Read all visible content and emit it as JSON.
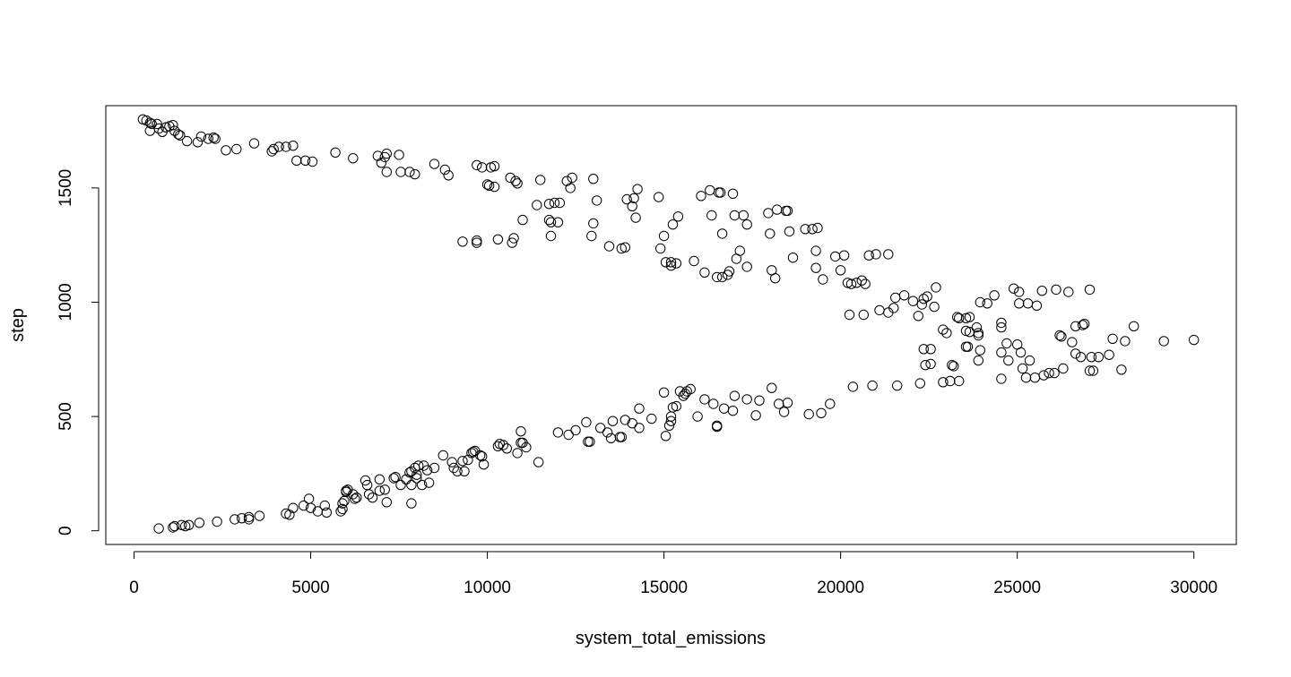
{
  "chart_data": {
    "type": "scatter",
    "xlabel": "system_total_emissions",
    "ylabel": "step",
    "xlim": [
      -800,
      31200
    ],
    "ylim": [
      -60,
      1860
    ],
    "grid": false,
    "legend": "none",
    "marker": "open-circle",
    "colors": {
      "points": "#000000",
      "axes": "#000000",
      "background": "#ffffff"
    },
    "x_ticks": [
      0,
      5000,
      10000,
      15000,
      20000,
      25000,
      30000
    ],
    "x_tick_labels": [
      "0",
      "5000",
      "10000",
      "15000",
      "20000",
      "25000",
      "30000"
    ],
    "y_ticks": [
      0,
      500,
      1000,
      1500
    ],
    "y_tick_labels": [
      "0",
      "500",
      "1000",
      "1500"
    ],
    "points": [
      [
        250,
        1800
      ],
      [
        350,
        1795
      ],
      [
        450,
        1785
      ],
      [
        500,
        1780
      ],
      [
        450,
        1750
      ],
      [
        650,
        1780
      ],
      [
        700,
        1760
      ],
      [
        800,
        1745
      ],
      [
        900,
        1765
      ],
      [
        1000,
        1770
      ],
      [
        1100,
        1775
      ],
      [
        1150,
        1750
      ],
      [
        1250,
        1735
      ],
      [
        1300,
        1730
      ],
      [
        1500,
        1705
      ],
      [
        1800,
        1700
      ],
      [
        1900,
        1725
      ],
      [
        2100,
        1715
      ],
      [
        2250,
        1720
      ],
      [
        2300,
        1715
      ],
      [
        2600,
        1665
      ],
      [
        2900,
        1670
      ],
      [
        3400,
        1695
      ],
      [
        3900,
        1660
      ],
      [
        3950,
        1670
      ],
      [
        4100,
        1680
      ],
      [
        4300,
        1680
      ],
      [
        4500,
        1685
      ],
      [
        4600,
        1620
      ],
      [
        4850,
        1620
      ],
      [
        5050,
        1615
      ],
      [
        5700,
        1655
      ],
      [
        6200,
        1630
      ],
      [
        6900,
        1640
      ],
      [
        7000,
        1610
      ],
      [
        7100,
        1635
      ],
      [
        7150,
        1650
      ],
      [
        7150,
        1570
      ],
      [
        7500,
        1645
      ],
      [
        7550,
        1570
      ],
      [
        7800,
        1570
      ],
      [
        7950,
        1560
      ],
      [
        8500,
        1605
      ],
      [
        8800,
        1580
      ],
      [
        8900,
        1555
      ],
      [
        9300,
        1265
      ],
      [
        9700,
        1260
      ],
      [
        9700,
        1270
      ],
      [
        9700,
        1600
      ],
      [
        9850,
        1590
      ],
      [
        10000,
        1515
      ],
      [
        10050,
        1510
      ],
      [
        10100,
        1590
      ],
      [
        10200,
        1595
      ],
      [
        10200,
        1505
      ],
      [
        10300,
        1275
      ],
      [
        10650,
        1545
      ],
      [
        10700,
        1260
      ],
      [
        10750,
        1280
      ],
      [
        10800,
        1530
      ],
      [
        10850,
        1520
      ],
      [
        11000,
        1360
      ],
      [
        11400,
        1425
      ],
      [
        11500,
        1535
      ],
      [
        11750,
        1360
      ],
      [
        11750,
        1430
      ],
      [
        11800,
        1350
      ],
      [
        11800,
        1290
      ],
      [
        11900,
        1435
      ],
      [
        12000,
        1350
      ],
      [
        12050,
        1435
      ],
      [
        12250,
        1530
      ],
      [
        12350,
        1500
      ],
      [
        12400,
        1545
      ],
      [
        12950,
        1290
      ],
      [
        13000,
        1345
      ],
      [
        13000,
        1540
      ],
      [
        13100,
        1445
      ],
      [
        13450,
        1245
      ],
      [
        13800,
        1235
      ],
      [
        13900,
        1240
      ],
      [
        13950,
        1450
      ],
      [
        14100,
        1420
      ],
      [
        14150,
        1455
      ],
      [
        14200,
        1370
      ],
      [
        14250,
        1495
      ],
      [
        14850,
        1460
      ],
      [
        14900,
        1235
      ],
      [
        15000,
        1290
      ],
      [
        15050,
        1175
      ],
      [
        15200,
        1160
      ],
      [
        15200,
        1175
      ],
      [
        15250,
        1340
      ],
      [
        15350,
        1170
      ],
      [
        15400,
        1375
      ],
      [
        15850,
        1180
      ],
      [
        16050,
        1465
      ],
      [
        16150,
        1130
      ],
      [
        16300,
        1490
      ],
      [
        16350,
        1380
      ],
      [
        16500,
        1110
      ],
      [
        16550,
        1480
      ],
      [
        16600,
        1480
      ],
      [
        16650,
        1300
      ],
      [
        16650,
        1110
      ],
      [
        16800,
        1120
      ],
      [
        16850,
        1135
      ],
      [
        16950,
        1475
      ],
      [
        17000,
        1380
      ],
      [
        17050,
        1190
      ],
      [
        17150,
        1225
      ],
      [
        17250,
        1380
      ],
      [
        17350,
        1340
      ],
      [
        17350,
        1155
      ],
      [
        17950,
        1390
      ],
      [
        18000,
        1300
      ],
      [
        18050,
        1140
      ],
      [
        18150,
        1105
      ],
      [
        18200,
        1405
      ],
      [
        18450,
        1400
      ],
      [
        18500,
        1400
      ],
      [
        18550,
        1310
      ],
      [
        18650,
        1195
      ],
      [
        19000,
        1320
      ],
      [
        19200,
        1320
      ],
      [
        19300,
        1225
      ],
      [
        19300,
        1150
      ],
      [
        19350,
        1325
      ],
      [
        19500,
        1100
      ],
      [
        19850,
        1200
      ],
      [
        20000,
        1140
      ],
      [
        20100,
        1205
      ],
      [
        20200,
        1085
      ],
      [
        20250,
        945
      ],
      [
        20300,
        1080
      ],
      [
        20450,
        1085
      ],
      [
        20600,
        1095
      ],
      [
        20650,
        945
      ],
      [
        20700,
        1080
      ],
      [
        20800,
        1205
      ],
      [
        21000,
        1210
      ],
      [
        21100,
        965
      ],
      [
        21350,
        1210
      ],
      [
        21350,
        955
      ],
      [
        21500,
        975
      ],
      [
        21550,
        1020
      ],
      [
        21800,
        1030
      ],
      [
        22050,
        1005
      ],
      [
        22200,
        940
      ],
      [
        22300,
        990
      ],
      [
        22350,
        1015
      ],
      [
        22450,
        1025
      ],
      [
        22650,
        980
      ],
      [
        22700,
        1065
      ],
      [
        23300,
        935
      ],
      [
        23550,
        930
      ],
      [
        23550,
        875
      ],
      [
        23650,
        935
      ],
      [
        23850,
        890
      ],
      [
        23900,
        865
      ],
      [
        23950,
        1000
      ],
      [
        24150,
        995
      ],
      [
        24350,
        1030
      ],
      [
        24550,
        890
      ],
      [
        24550,
        910
      ],
      [
        24900,
        1060
      ],
      [
        25050,
        1045
      ],
      [
        25050,
        995
      ],
      [
        25300,
        995
      ],
      [
        25550,
        985
      ],
      [
        25700,
        1050
      ],
      [
        26100,
        1055
      ],
      [
        26450,
        1045
      ],
      [
        26650,
        895
      ],
      [
        26850,
        900
      ],
      [
        26900,
        905
      ],
      [
        27050,
        1055
      ],
      [
        700,
        10
      ],
      [
        1100,
        15
      ],
      [
        1150,
        20
      ],
      [
        1350,
        25
      ],
      [
        1450,
        20
      ],
      [
        1550,
        25
      ],
      [
        1850,
        35
      ],
      [
        2350,
        40
      ],
      [
        2850,
        50
      ],
      [
        3050,
        55
      ],
      [
        3250,
        60
      ],
      [
        3250,
        50
      ],
      [
        3550,
        65
      ],
      [
        4300,
        75
      ],
      [
        4400,
        70
      ],
      [
        4500,
        100
      ],
      [
        4800,
        110
      ],
      [
        4950,
        140
      ],
      [
        5000,
        100
      ],
      [
        5200,
        85
      ],
      [
        5400,
        110
      ],
      [
        5450,
        80
      ],
      [
        5850,
        85
      ],
      [
        5900,
        95
      ],
      [
        5900,
        120
      ],
      [
        5950,
        130
      ],
      [
        6000,
        170
      ],
      [
        6000,
        175
      ],
      [
        6050,
        180
      ],
      [
        6200,
        160
      ],
      [
        6250,
        140
      ],
      [
        6300,
        145
      ],
      [
        6550,
        220
      ],
      [
        6600,
        200
      ],
      [
        6650,
        160
      ],
      [
        6750,
        145
      ],
      [
        6950,
        175
      ],
      [
        6950,
        225
      ],
      [
        7100,
        180
      ],
      [
        7150,
        125
      ],
      [
        7350,
        230
      ],
      [
        7400,
        235
      ],
      [
        7550,
        200
      ],
      [
        7700,
        225
      ],
      [
        7800,
        255
      ],
      [
        7850,
        260
      ],
      [
        7850,
        120
      ],
      [
        7850,
        200
      ],
      [
        7950,
        275
      ],
      [
        8000,
        230
      ],
      [
        8000,
        245
      ],
      [
        8050,
        285
      ],
      [
        8150,
        200
      ],
      [
        8200,
        285
      ],
      [
        8300,
        265
      ],
      [
        8350,
        210
      ],
      [
        8500,
        275
      ],
      [
        8750,
        330
      ],
      [
        9000,
        300
      ],
      [
        9050,
        275
      ],
      [
        9150,
        260
      ],
      [
        9300,
        305
      ],
      [
        9350,
        260
      ],
      [
        9450,
        310
      ],
      [
        9550,
        340
      ],
      [
        9600,
        345
      ],
      [
        9650,
        350
      ],
      [
        9800,
        330
      ],
      [
        9850,
        325
      ],
      [
        9900,
        290
      ],
      [
        10300,
        370
      ],
      [
        10350,
        380
      ],
      [
        10450,
        375
      ],
      [
        10550,
        360
      ],
      [
        10850,
        340
      ],
      [
        10950,
        385
      ],
      [
        10950,
        435
      ],
      [
        11000,
        385
      ],
      [
        11100,
        365
      ],
      [
        11450,
        300
      ],
      [
        12000,
        430
      ],
      [
        12300,
        420
      ],
      [
        12500,
        440
      ],
      [
        12800,
        475
      ],
      [
        12850,
        390
      ],
      [
        12900,
        390
      ],
      [
        13200,
        450
      ],
      [
        13400,
        430
      ],
      [
        13500,
        405
      ],
      [
        13550,
        480
      ],
      [
        13750,
        410
      ],
      [
        13800,
        410
      ],
      [
        13900,
        485
      ],
      [
        14100,
        470
      ],
      [
        14300,
        450
      ],
      [
        14300,
        535
      ],
      [
        14650,
        490
      ],
      [
        15000,
        605
      ],
      [
        15050,
        415
      ],
      [
        15150,
        460
      ],
      [
        15200,
        480
      ],
      [
        15200,
        500
      ],
      [
        15250,
        540
      ],
      [
        15350,
        545
      ],
      [
        15450,
        610
      ],
      [
        15550,
        590
      ],
      [
        15600,
        600
      ],
      [
        15650,
        610
      ],
      [
        15750,
        620
      ],
      [
        15950,
        500
      ],
      [
        16150,
        575
      ],
      [
        16400,
        555
      ],
      [
        16500,
        460
      ],
      [
        16500,
        455
      ],
      [
        16700,
        535
      ],
      [
        16950,
        525
      ],
      [
        17000,
        590
      ],
      [
        17350,
        575
      ],
      [
        17600,
        505
      ],
      [
        17700,
        570
      ],
      [
        18050,
        625
      ],
      [
        18250,
        555
      ],
      [
        18400,
        520
      ],
      [
        18500,
        560
      ],
      [
        19100,
        510
      ],
      [
        19450,
        515
      ],
      [
        19700,
        555
      ],
      [
        20350,
        630
      ],
      [
        20900,
        635
      ],
      [
        21600,
        635
      ],
      [
        22250,
        645
      ],
      [
        22350,
        795
      ],
      [
        22400,
        725
      ],
      [
        22550,
        730
      ],
      [
        22550,
        795
      ],
      [
        22900,
        650
      ],
      [
        22900,
        880
      ],
      [
        23000,
        865
      ],
      [
        23100,
        655
      ],
      [
        23150,
        725
      ],
      [
        23200,
        720
      ],
      [
        23350,
        655
      ],
      [
        23350,
        930
      ],
      [
        23550,
        805
      ],
      [
        23600,
        805
      ],
      [
        23650,
        870
      ],
      [
        23900,
        855
      ],
      [
        23900,
        745
      ],
      [
        23950,
        790
      ],
      [
        24550,
        665
      ],
      [
        24550,
        780
      ],
      [
        24700,
        820
      ],
      [
        24750,
        745
      ],
      [
        25000,
        815
      ],
      [
        25100,
        780
      ],
      [
        25150,
        710
      ],
      [
        25250,
        670
      ],
      [
        25350,
        745
      ],
      [
        25500,
        670
      ],
      [
        25750,
        680
      ],
      [
        25900,
        690
      ],
      [
        26050,
        690
      ],
      [
        26200,
        855
      ],
      [
        26250,
        850
      ],
      [
        26300,
        710
      ],
      [
        26550,
        825
      ],
      [
        26650,
        775
      ],
      [
        26800,
        760
      ],
      [
        27050,
        700
      ],
      [
        27100,
        760
      ],
      [
        27150,
        700
      ],
      [
        27300,
        760
      ],
      [
        27600,
        770
      ],
      [
        27700,
        840
      ],
      [
        27950,
        705
      ],
      [
        28050,
        830
      ],
      [
        28300,
        895
      ],
      [
        29150,
        830
      ],
      [
        30000,
        835
      ]
    ]
  }
}
